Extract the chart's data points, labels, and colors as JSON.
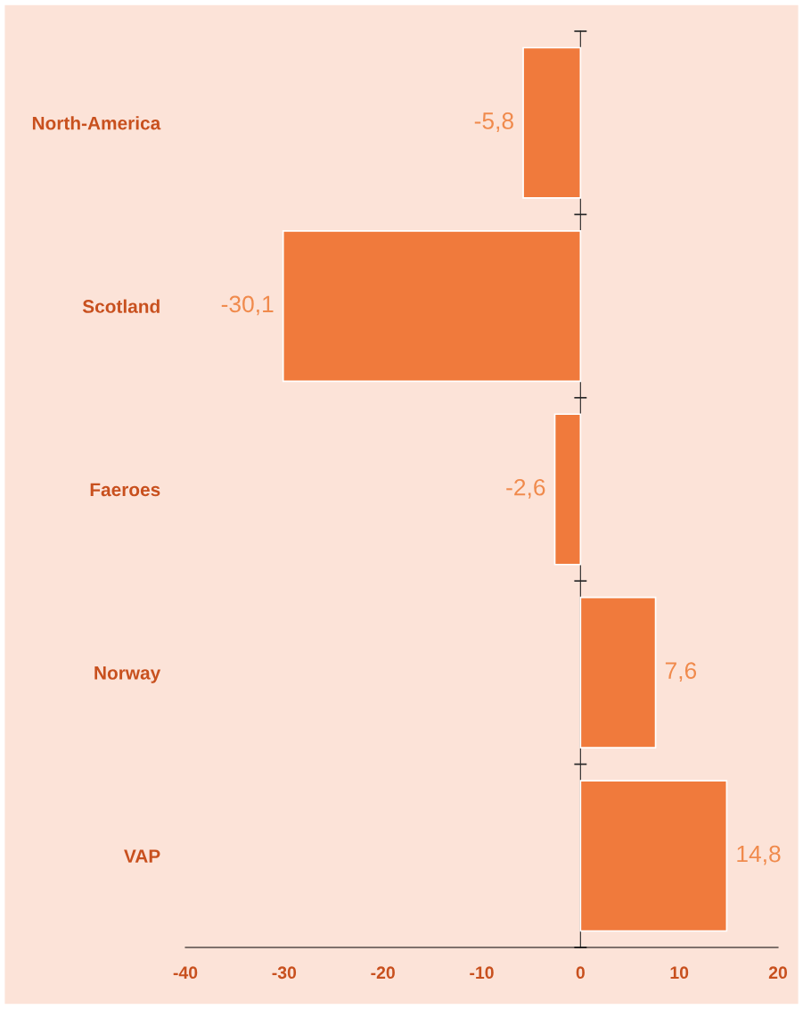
{
  "chart_data": {
    "type": "bar",
    "orientation": "horizontal",
    "categories": [
      "North-America",
      "Scotland",
      "Faeroes",
      "Norway",
      "VAP"
    ],
    "values": [
      -5.8,
      -30.1,
      -2.6,
      7.6,
      14.8
    ],
    "value_labels": [
      "-5,8",
      "-30,1",
      "-2,6",
      "7,6",
      "14,8"
    ],
    "color": "#f07a3c",
    "xlim": [
      -40,
      20
    ],
    "xticks": [
      -40,
      -30,
      -20,
      -10,
      0,
      10,
      20
    ],
    "legend": false
  }
}
